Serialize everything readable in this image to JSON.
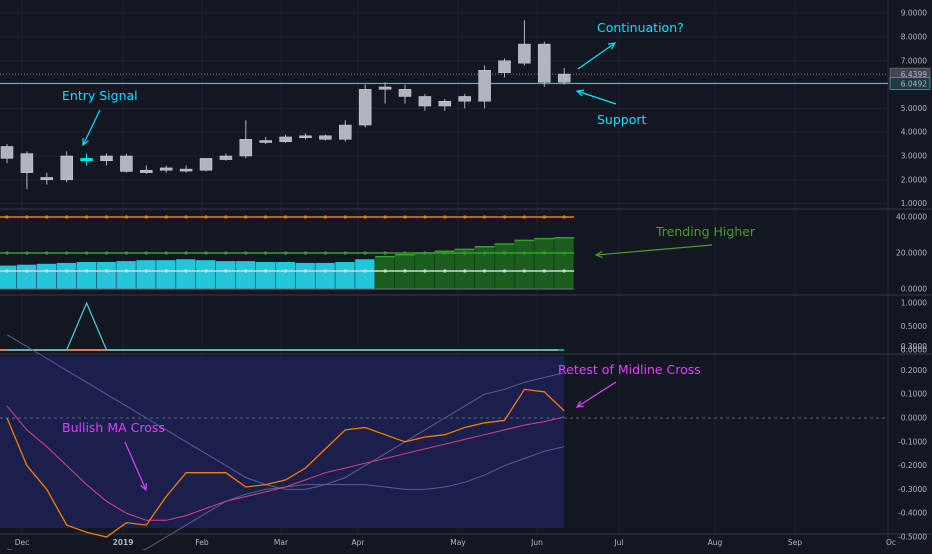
{
  "colors": {
    "background": "#131722",
    "grid": "#1e222d",
    "divider": "#2a2e39",
    "candle": "#b2b5be",
    "candle_edge": "#d1d4dc",
    "signal_candle": "#00e5ff",
    "cyan_annot": "#00e5ff",
    "green_annot": "#4c9a2a",
    "magenta_annot": "#e040fb",
    "orange": "#f57c00",
    "teal": "#26c6da",
    "dark_green": "#1b5e20",
    "bright_green": "#33a02c",
    "salmon": "#ef8a6a",
    "osc_fill": "#1a1f4d",
    "band": "#5a5f8f",
    "signal_line": "#e0427a",
    "support_line": "#4dd0e1"
  },
  "time_axis": {
    "labels": [
      "Dec",
      "2019",
      "Feb",
      "Mar",
      "Apr",
      "May",
      "Jun",
      "Jul",
      "Aug",
      "Sep",
      "Oc"
    ],
    "bold": [
      false,
      true,
      false,
      false,
      false,
      false,
      false,
      false,
      false,
      false,
      false
    ]
  },
  "chart_data": [
    {
      "type": "candlestick",
      "name": "price",
      "y_ticks": [
        "1.0000",
        "2.0000",
        "3.0000",
        "4.0000",
        "5.0000",
        "6.0000",
        "7.0000",
        "8.0000",
        "9.0000"
      ],
      "ylim": [
        0.9,
        9.3
      ],
      "candles": [
        {
          "o": 2.9,
          "h": 3.5,
          "l": 2.7,
          "c": 3.4
        },
        {
          "o": 3.1,
          "h": 3.2,
          "l": 1.6,
          "c": 2.3
        },
        {
          "o": 2.0,
          "h": 2.3,
          "l": 1.8,
          "c": 2.1
        },
        {
          "o": 2.0,
          "h": 3.2,
          "l": 1.9,
          "c": 3.0
        },
        {
          "o": 2.8,
          "h": 3.1,
          "l": 2.6,
          "c": 2.9
        },
        {
          "o": 2.8,
          "h": 3.1,
          "l": 2.6,
          "c": 3.0
        },
        {
          "o": 3.0,
          "h": 3.1,
          "l": 2.3,
          "c": 2.35
        },
        {
          "o": 2.3,
          "h": 2.6,
          "l": 2.25,
          "c": 2.4
        },
        {
          "o": 2.4,
          "h": 2.6,
          "l": 2.3,
          "c": 2.5
        },
        {
          "o": 2.4,
          "h": 2.6,
          "l": 2.3,
          "c": 2.45
        },
        {
          "o": 2.4,
          "h": 2.9,
          "l": 2.35,
          "c": 2.9
        },
        {
          "o": 2.85,
          "h": 3.1,
          "l": 2.8,
          "c": 3.0
        },
        {
          "o": 3.0,
          "h": 4.5,
          "l": 2.9,
          "c": 3.7
        },
        {
          "o": 3.6,
          "h": 3.8,
          "l": 3.5,
          "c": 3.65
        },
        {
          "o": 3.6,
          "h": 3.9,
          "l": 3.55,
          "c": 3.8
        },
        {
          "o": 3.8,
          "h": 3.95,
          "l": 3.7,
          "c": 3.85
        },
        {
          "o": 3.7,
          "h": 3.9,
          "l": 3.65,
          "c": 3.85
        },
        {
          "o": 3.7,
          "h": 4.5,
          "l": 3.6,
          "c": 4.3
        },
        {
          "o": 4.3,
          "h": 6.0,
          "l": 4.2,
          "c": 5.8
        },
        {
          "o": 5.8,
          "h": 6.1,
          "l": 5.2,
          "c": 5.9
        },
        {
          "o": 5.8,
          "h": 6.0,
          "l": 5.2,
          "c": 5.5
        },
        {
          "o": 5.5,
          "h": 5.6,
          "l": 4.9,
          "c": 5.1
        },
        {
          "o": 5.1,
          "h": 5.4,
          "l": 4.9,
          "c": 5.3
        },
        {
          "o": 5.3,
          "h": 5.6,
          "l": 5.0,
          "c": 5.5
        },
        {
          "o": 5.3,
          "h": 6.8,
          "l": 5.0,
          "c": 6.6
        },
        {
          "o": 6.5,
          "h": 7.1,
          "l": 6.3,
          "c": 7.0
        },
        {
          "o": 6.9,
          "h": 8.7,
          "l": 6.8,
          "c": 7.7
        },
        {
          "o": 7.7,
          "h": 7.8,
          "l": 5.9,
          "c": 6.1
        },
        {
          "o": 6.1,
          "h": 6.7,
          "l": 6.0,
          "c": 6.44
        }
      ],
      "signal_index": 4,
      "price_labels": [
        {
          "text": "6.4399",
          "value": 6.4399
        },
        {
          "text": "6.0492",
          "value": 6.0492
        }
      ],
      "support_value": 6.0492,
      "annotations": [
        {
          "text": "Continuation?"
        },
        {
          "text": "Support"
        },
        {
          "text": "Entry Signal"
        }
      ]
    },
    {
      "type": "bar",
      "name": "trend-strength",
      "y_ticks": [
        "0.0000",
        "20.0000",
        "40.0000"
      ],
      "ylim": [
        0,
        42
      ],
      "values": [
        13,
        13.5,
        14,
        14.5,
        15,
        15,
        15.5,
        16,
        16,
        16.5,
        16,
        15.5,
        15.5,
        15,
        15,
        14.5,
        14.5,
        15,
        16.5,
        18,
        19,
        20,
        21,
        22,
        23.5,
        25,
        27,
        28,
        28.5
      ],
      "color_switch_index": 19,
      "upper_level": 40,
      "mid_level": 20,
      "lower_level": 10,
      "annotations": [
        {
          "text": "Trending Higher"
        }
      ]
    },
    {
      "type": "line",
      "name": "entry-signal",
      "y_ticks": [
        "0.0000",
        "0.5000",
        "1.0000"
      ],
      "ylim": [
        -0.05,
        1.05
      ],
      "values": [
        0,
        0,
        0,
        0,
        1,
        0,
        0,
        0,
        0,
        0,
        0,
        0,
        0,
        0,
        0,
        0,
        0,
        0,
        0,
        0,
        0,
        0,
        0,
        0,
        0,
        0,
        0,
        0,
        0
      ]
    },
    {
      "type": "line",
      "name": "oscillator",
      "y_ticks": [
        "-0.5000",
        "-0.4000",
        "-0.3000",
        "-0.2000",
        "-0.1000",
        "0.0000",
        "0.1000",
        "0.2000",
        "0.3000"
      ],
      "ylim": [
        -0.55,
        0.3
      ],
      "osc": [
        0.0,
        -0.2,
        -0.3,
        -0.45,
        -0.48,
        -0.5,
        -0.44,
        -0.45,
        -0.33,
        -0.23,
        -0.23,
        -0.23,
        -0.29,
        -0.28,
        -0.26,
        -0.21,
        -0.13,
        -0.05,
        -0.04,
        -0.07,
        -0.1,
        -0.08,
        -0.07,
        -0.04,
        -0.02,
        -0.01,
        0.12,
        0.11,
        0.03
      ],
      "signal": [
        0.05,
        -0.05,
        -0.12,
        -0.2,
        -0.28,
        -0.35,
        -0.4,
        -0.43,
        -0.43,
        -0.41,
        -0.38,
        -0.35,
        -0.33,
        -0.31,
        -0.29,
        -0.26,
        -0.23,
        -0.21,
        -0.19,
        -0.17,
        -0.15,
        -0.13,
        -0.11,
        -0.09,
        -0.07,
        -0.05,
        -0.03,
        -0.015,
        0.005
      ],
      "upper_band": [
        0.35,
        0.3,
        0.25,
        0.2,
        0.15,
        0.1,
        0.05,
        0.0,
        -0.05,
        -0.1,
        -0.15,
        -0.2,
        -0.25,
        -0.28,
        -0.3,
        -0.3,
        -0.28,
        -0.25,
        -0.2,
        -0.15,
        -0.1,
        -0.05,
        0.0,
        0.05,
        0.1,
        0.12,
        0.15,
        0.17,
        0.19
      ],
      "lower_band": [
        -0.55,
        -0.57,
        -0.59,
        -0.6,
        -0.6,
        -0.6,
        -0.58,
        -0.55,
        -0.5,
        -0.45,
        -0.4,
        -0.35,
        -0.32,
        -0.3,
        -0.29,
        -0.28,
        -0.28,
        -0.28,
        -0.28,
        -0.29,
        -0.3,
        -0.3,
        -0.29,
        -0.27,
        -0.24,
        -0.2,
        -0.17,
        -0.14,
        -0.12
      ],
      "annotations": [
        {
          "text": "Retest of Midline Cross"
        },
        {
          "text": "Bullish MA Cross"
        }
      ]
    }
  ]
}
